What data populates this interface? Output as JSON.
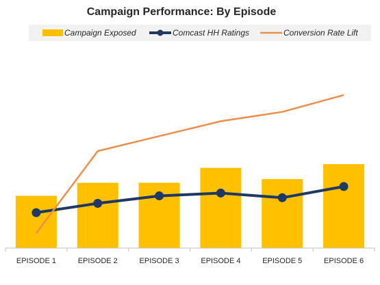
{
  "chart_data": {
    "type": "bar",
    "title": "Campaign Performance: By Episode",
    "xlabel": "",
    "ylabel": "",
    "categories": [
      "EPISODE 1",
      "EPISODE 2",
      "EPISODE 3",
      "EPISODE 4",
      "EPISODE 5",
      "EPISODE 6"
    ],
    "ylim": [
      0,
      100
    ],
    "grid": false,
    "legend_position": "top",
    "series": [
      {
        "name": "Campaign Exposed",
        "kind": "bar",
        "color": "#FFC000",
        "values": [
          28,
          35,
          35,
          43,
          37,
          45
        ]
      },
      {
        "name": "Comcast HH Ratings",
        "kind": "line",
        "marker": "circle",
        "color": "#1F3864",
        "values": [
          19,
          24,
          28,
          29.5,
          27,
          33
        ]
      },
      {
        "name": "Conversion Rate Lift",
        "kind": "line",
        "marker": "none",
        "color": "#ED8D4A",
        "values": [
          8,
          52,
          60,
          68,
          73,
          82
        ]
      }
    ]
  }
}
